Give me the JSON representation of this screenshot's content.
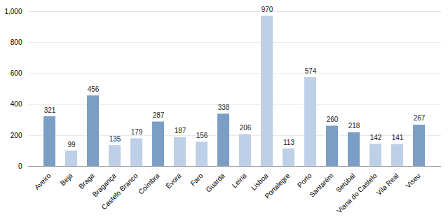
{
  "chart_data": {
    "type": "bar",
    "categories": [
      "Aveiro",
      "Beja",
      "Braga",
      "Bragança",
      "Castelo Branco",
      "Coimbra",
      "Évora",
      "Faro",
      "Guarda",
      "Leiria",
      "Lisboa",
      "Portalegre",
      "Porto",
      "Santarém",
      "Setúbal",
      "Viana do Castelo",
      "Vila Real",
      "Viseu"
    ],
    "values": [
      321,
      99,
      456,
      135,
      179,
      287,
      187,
      156,
      338,
      206,
      970,
      113,
      574,
      260,
      218,
      142,
      141,
      267
    ],
    "colors": [
      "#7b9ec4",
      "#bdd0e8",
      "#7b9ec4",
      "#bdd0e8",
      "#bdd0e8",
      "#7b9ec4",
      "#bdd0e8",
      "#bdd0e8",
      "#7b9ec4",
      "#bdd0e8",
      "#bdd0e8",
      "#bdd0e8",
      "#bdd0e8",
      "#7b9ec4",
      "#7b9ec4",
      "#bdd0e8",
      "#bdd0e8",
      "#7b9ec4"
    ],
    "ylim": [
      0,
      1000
    ],
    "yticks": [
      0,
      200,
      400,
      600,
      800,
      1000
    ],
    "grid": true,
    "data_labels": true
  }
}
